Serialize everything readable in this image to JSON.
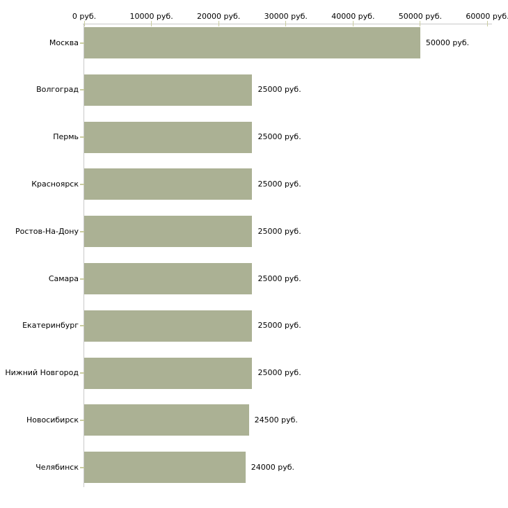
{
  "chart_data": {
    "type": "bar",
    "orientation": "horizontal",
    "title": "",
    "unit": "руб.",
    "categories": [
      "Москва",
      "Волгоград",
      "Пермь",
      "Красноярск",
      "Ростов-На-Дону",
      "Самара",
      "Екатеринбург",
      "Нижний Новгород",
      "Новосибирск",
      "Челябинск"
    ],
    "values": [
      50000,
      25000,
      25000,
      25000,
      25000,
      25000,
      25000,
      25000,
      24500,
      24000
    ],
    "bar_labels": [
      "50000 руб.",
      "25000 руб.",
      "25000 руб.",
      "25000 руб.",
      "25000 руб.",
      "25000 руб.",
      "25000 руб.",
      "25000 руб.",
      "24500 руб.",
      "24000 руб."
    ],
    "x_axis": {
      "position": "top",
      "min": 0,
      "max": 60000,
      "tick_labels": [
        "0 руб.",
        "10000 руб.",
        "20000 руб.",
        "30000 руб.",
        "40000 руб.",
        "50000 руб.",
        "60000 руб."
      ]
    },
    "legend": "none",
    "grid": "off",
    "colors": {
      "bar": "#abb194",
      "axis_line": "#c9c9c9",
      "tick": "#c9cc9f",
      "text": "#000000",
      "background": "#ffffff"
    }
  }
}
